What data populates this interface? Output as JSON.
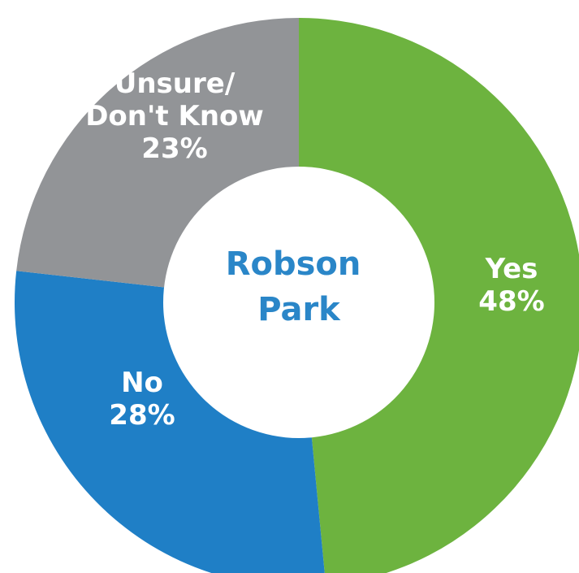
{
  "chart_data": {
    "type": "pie",
    "style": "donut",
    "center_label": [
      "Robson",
      "Park"
    ],
    "center_label_color": "#2a86c8",
    "slices": [
      {
        "name": "Yes",
        "label_lines": [
          "Yes"
        ],
        "value": 48,
        "value_label": "48%",
        "color": "#6db33f"
      },
      {
        "name": "No",
        "label_lines": [
          "No"
        ],
        "value": 28,
        "value_label": "28%",
        "color": "#1f7fc6"
      },
      {
        "name": "Unsure/ Don't Know",
        "label_lines": [
          "Unsure/",
          "Don't Know"
        ],
        "value": 23,
        "value_label": "23%",
        "color": "#929497"
      }
    ]
  }
}
